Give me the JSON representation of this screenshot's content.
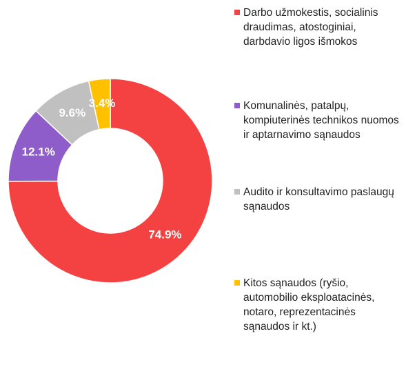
{
  "chart_data": {
    "type": "pie",
    "donut": true,
    "categories": [
      "Darbo užmokestis, socialinis draudimas, atostoginiai, darbdavio ligos išmokos",
      "Komunalinės, patalpų, kompiuterinės technikos nuomos ir aptarnavimo sąnaudos",
      "Audito ir konsultavimo paslaugų sąnaudos",
      "Kitos sąnaudos (ryšio, automobilio eksploatacinės, notaro, reprezentacinės sąnaudos ir kt.)"
    ],
    "values": [
      74.9,
      12.1,
      9.6,
      3.4
    ],
    "value_labels": [
      "74.9%",
      "12.1%",
      "9.6%",
      "3.4%"
    ],
    "colors": [
      "#f44141",
      "#8f5dc9",
      "#c0c0c0",
      "#ffc000"
    ],
    "legend": "right"
  }
}
